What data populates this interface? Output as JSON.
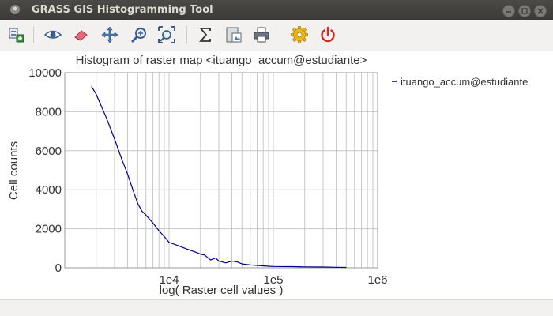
{
  "window": {
    "title": "GRASS GIS Histogramming Tool",
    "app_icon": "grass-logo-icon",
    "controls": [
      "minimize-icon",
      "maximize-icon",
      "close-icon"
    ]
  },
  "toolbar": {
    "items": [
      {
        "name": "add-raster-map-button",
        "icon": "add-raster-icon"
      },
      {
        "name": "display-map-button",
        "icon": "eye-icon"
      },
      {
        "name": "erase-display-button",
        "icon": "eraser-icon"
      },
      {
        "name": "pan-button",
        "icon": "pan-arrows-icon"
      },
      {
        "name": "zoom-in-button",
        "icon": "zoom-magnifier-icon"
      },
      {
        "name": "zoom-extent-button",
        "icon": "zoom-extent-icon"
      },
      {
        "name": "statistics-button",
        "icon": "sigma-icon"
      },
      {
        "name": "save-image-button",
        "icon": "save-image-icon"
      },
      {
        "name": "print-button",
        "icon": "printer-icon"
      },
      {
        "name": "settings-button",
        "icon": "gear-icon"
      },
      {
        "name": "quit-button",
        "icon": "power-icon"
      }
    ]
  },
  "colors": {
    "line": "#00008b",
    "grid": "#c8c8c8",
    "settings_icon": "#e8b81c",
    "quit_icon": "#cc2a1f"
  },
  "chart_data": {
    "type": "line",
    "title": "Histogram of raster map <ituango_accum@estudiante>",
    "xlabel": "log( Raster cell values )",
    "ylabel": "Cell counts",
    "xscale": "log",
    "xlim": [
      1000,
      1000000
    ],
    "ylim": [
      0,
      10000
    ],
    "xticks": [
      10000,
      100000,
      1000000
    ],
    "xtick_labels": [
      "1e4",
      "1e5",
      "1e6"
    ],
    "yticks": [
      0,
      2000,
      4000,
      6000,
      8000,
      10000
    ],
    "ytick_labels": [
      "0",
      "2000",
      "4000",
      "6000",
      "8000",
      "10000"
    ],
    "grid": true,
    "legend_position": "right",
    "series": [
      {
        "name": "ituango_accum@estudiante",
        "x": [
          1800,
          2000,
          2500,
          3000,
          3500,
          4000,
          4500,
          5000,
          5500,
          6000,
          7000,
          8000,
          9000,
          10000,
          12000,
          15000,
          18000,
          20000,
          22000,
          25000,
          28000,
          30000,
          35000,
          40000,
          45000,
          50000,
          60000,
          70000,
          80000,
          90000,
          100000,
          150000,
          200000,
          300000,
          400000,
          500000
        ],
        "y": [
          9300,
          8900,
          7700,
          6600,
          5600,
          4800,
          4000,
          3300,
          2900,
          2700,
          2300,
          1900,
          1600,
          1300,
          1150,
          950,
          800,
          700,
          650,
          400,
          500,
          350,
          250,
          350,
          300,
          200,
          150,
          120,
          100,
          80,
          70,
          60,
          50,
          40,
          30,
          20
        ]
      }
    ]
  }
}
